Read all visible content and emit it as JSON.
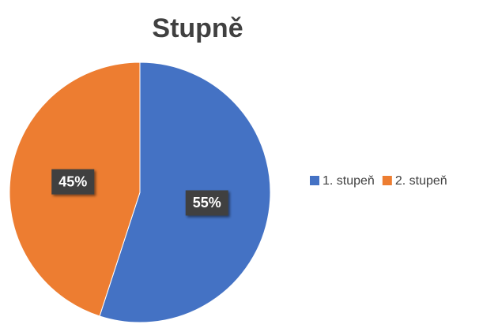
{
  "chart_data": {
    "type": "pie",
    "title": "Stupně",
    "categories": [
      "1. stupeň",
      "2. stupeň"
    ],
    "values": [
      55,
      45
    ],
    "value_labels": [
      "55%",
      "45%"
    ],
    "colors": [
      "#4472c4",
      "#ed7d31"
    ],
    "legend": "right"
  }
}
